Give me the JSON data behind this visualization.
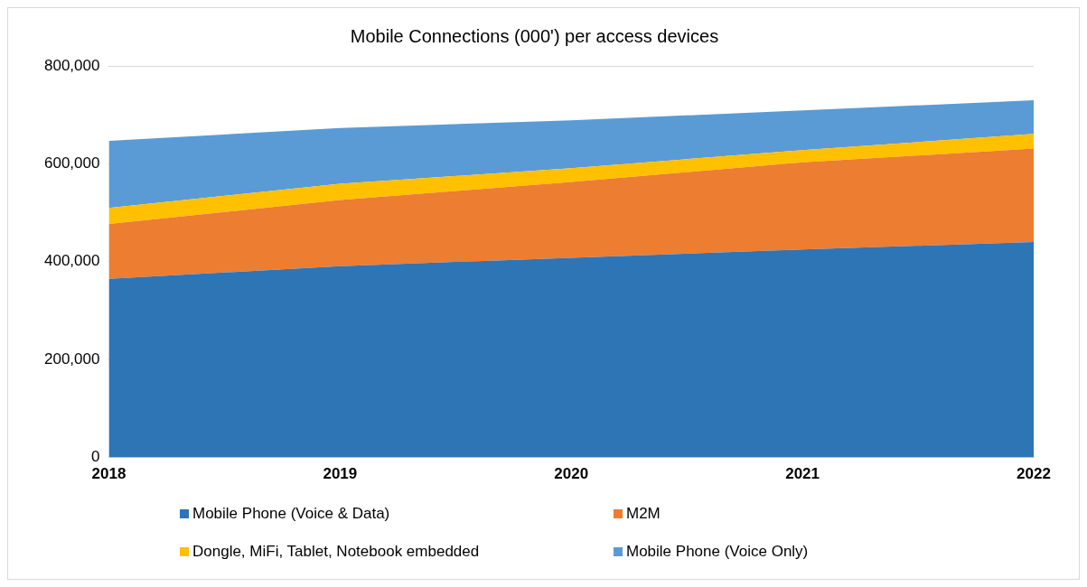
{
  "chart_data": {
    "type": "area",
    "title": "Mobile Connections (000') per access devices",
    "categories": [
      "2018",
      "2019",
      "2020",
      "2021",
      "2022"
    ],
    "stacked": true,
    "series": [
      {
        "name": "Mobile Phone (Voice & Data)",
        "color": "#2e75b6",
        "values": [
          365000,
          391000,
          408000,
          425000,
          440000
        ]
      },
      {
        "name": "M2M",
        "color": "#ed7d31",
        "values": [
          112000,
          135000,
          155000,
          178000,
          191000
        ]
      },
      {
        "name": "Dongle, MiFi, Tablet, Notebook embedded",
        "color": "#ffc000",
        "values": [
          33000,
          33000,
          28000,
          25000,
          30000
        ]
      },
      {
        "name": "Mobile Phone (Voice Only)",
        "color": "#5b9bd5",
        "values": [
          137000,
          114000,
          98000,
          81000,
          69000
        ]
      }
    ],
    "ylim": [
      0,
      800000
    ],
    "yticks": [
      0,
      {
        "value": 200000,
        "label": "200,000"
      },
      {
        "value": 400000,
        "label": "400,000"
      },
      {
        "value": 600000,
        "label": "600,000"
      },
      {
        "value": 800000,
        "label": "800,000"
      }
    ],
    "grid": "y",
    "legend": "bottom"
  }
}
